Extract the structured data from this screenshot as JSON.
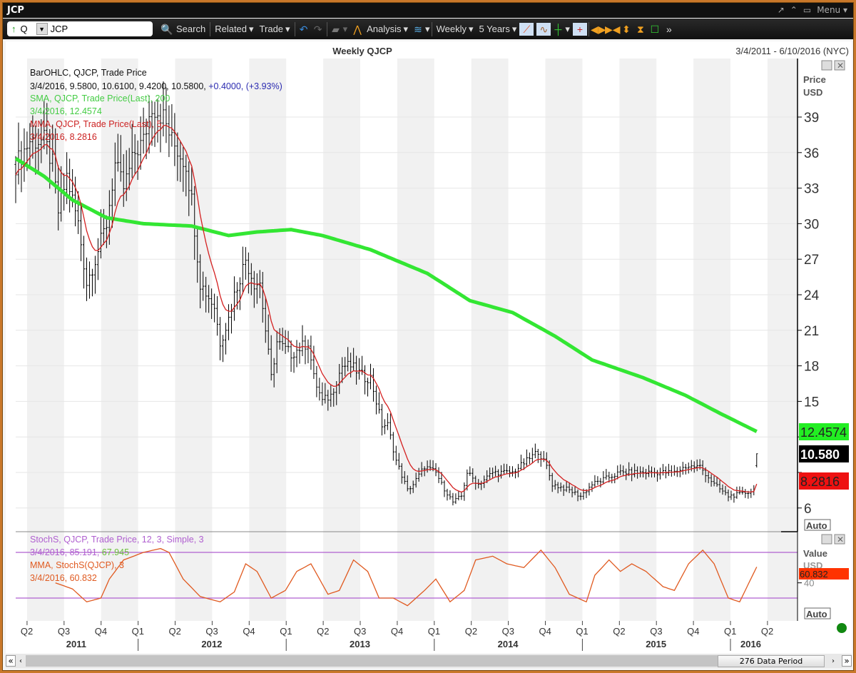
{
  "window": {
    "title": "JCP",
    "menu_label": "Menu"
  },
  "toolbar": {
    "direction": "Q",
    "symbol": "JCP",
    "search": "Search",
    "related": "Related",
    "trade": "Trade",
    "analysis": "Analysis",
    "interval": "Weekly",
    "range": "5 Years"
  },
  "chart_header": {
    "title": "Weekly QJCP",
    "date_range": "3/4/2011 - 6/10/2016 (NYC)"
  },
  "legend": {
    "bar_title": "BarOHLC, QJCP, Trade Price",
    "bar_values": "3/4/2016, 9.5800, 10.6100, 9.4200, 10.5800,",
    "bar_change": "+0.4000, (+3.93%)",
    "sma_title": "SMA, QJCP, Trade Price(Last),  200",
    "sma_values": "3/4/2016, 12.4574",
    "mma_title": "MMA, QJCP, Trade Price(Last),  5",
    "mma_values": "3/4/2016, 8.2816",
    "stoch_title": "StochS, QJCP, Trade Price,  12, 3, Simple, 3",
    "stoch_values": "3/4/2016, 85.191,",
    "stoch_d": "67.945",
    "smma_title": "MMA, StochS(QJCP),  3",
    "smma_values": "3/4/2016, 60.832"
  },
  "axis": {
    "price_label1": "Price",
    "price_label2": "USD",
    "value_label": "Value",
    "value_label2": "USD",
    "auto": "Auto",
    "sma_tag": "12.4574",
    "last_tag": "10.580",
    "mma_tag": "8.2816",
    "stoch_tag": "60.832"
  },
  "colors": {
    "sma": "#33e633",
    "mma": "#d42020",
    "stoch": "#c070d8",
    "stochma": "#e05a20",
    "bars": "#000000"
  },
  "scrollbar": {
    "label": "276 Data Period"
  },
  "chart_data": {
    "type": "line",
    "title": "Weekly QJCP",
    "x_unit": "weeks since 3/4/2011",
    "price_ylim": [
      4.5,
      41
    ],
    "price_ticks": [
      6,
      9,
      12,
      15,
      18,
      21,
      24,
      27,
      30,
      33,
      36,
      39
    ],
    "last_bar": {
      "date": "3/4/2016",
      "open": 9.58,
      "high": 10.61,
      "low": 9.42,
      "close": 10.58
    },
    "close_keypoints": [
      [
        0,
        35
      ],
      [
        5,
        37
      ],
      [
        10,
        37
      ],
      [
        13,
        35
      ],
      [
        15,
        31
      ],
      [
        18,
        34
      ],
      [
        22,
        30
      ],
      [
        25,
        25
      ],
      [
        28,
        27
      ],
      [
        32,
        30
      ],
      [
        35,
        35
      ],
      [
        38,
        33
      ],
      [
        42,
        36
      ],
      [
        45,
        37
      ],
      [
        48,
        40
      ],
      [
        52,
        39
      ],
      [
        55,
        37
      ],
      [
        60,
        35
      ],
      [
        62,
        32
      ],
      [
        65,
        25
      ],
      [
        70,
        23
      ],
      [
        72,
        20
      ],
      [
        75,
        22
      ],
      [
        77,
        24
      ],
      [
        81,
        27
      ],
      [
        84,
        25
      ],
      [
        86,
        25
      ],
      [
        90,
        17
      ],
      [
        92,
        20
      ],
      [
        97,
        19
      ],
      [
        103,
        20
      ],
      [
        105,
        17
      ],
      [
        108,
        15
      ],
      [
        111,
        15.5
      ],
      [
        115,
        18
      ],
      [
        118,
        18
      ],
      [
        123,
        17
      ],
      [
        125,
        17
      ],
      [
        129,
        13
      ],
      [
        131,
        13
      ],
      [
        134,
        10
      ],
      [
        138,
        7.5
      ],
      [
        140,
        8
      ],
      [
        144,
        9.5
      ],
      [
        148,
        9
      ],
      [
        150,
        8
      ],
      [
        154,
        6.5
      ],
      [
        157,
        7
      ],
      [
        159,
        9
      ],
      [
        163,
        8
      ],
      [
        168,
        9
      ],
      [
        175,
        9
      ],
      [
        180,
        10
      ],
      [
        184,
        10.8
      ],
      [
        187,
        9.5
      ],
      [
        189,
        8
      ],
      [
        195,
        7.5
      ],
      [
        199,
        7
      ],
      [
        203,
        8
      ],
      [
        208,
        8.5
      ],
      [
        213,
        9
      ],
      [
        221,
        9
      ],
      [
        228,
        9
      ],
      [
        232,
        9
      ],
      [
        236,
        9.5
      ],
      [
        241,
        9.5
      ],
      [
        246,
        8
      ],
      [
        251,
        7
      ],
      [
        256,
        7.2
      ],
      [
        260,
        7.5
      ],
      [
        261,
        10.58
      ]
    ],
    "sma200_keypoints": [
      [
        0,
        35.5
      ],
      [
        10,
        34
      ],
      [
        20,
        32
      ],
      [
        32,
        30.5
      ],
      [
        45,
        30
      ],
      [
        62,
        29.8
      ],
      [
        75,
        29
      ],
      [
        85,
        29.3
      ],
      [
        97,
        29.5
      ],
      [
        108,
        29
      ],
      [
        125,
        27.8
      ],
      [
        145,
        25.8
      ],
      [
        160,
        23.5
      ],
      [
        175,
        22.5
      ],
      [
        190,
        20.5
      ],
      [
        203,
        18.5
      ],
      [
        221,
        17
      ],
      [
        236,
        15.5
      ],
      [
        248,
        14
      ],
      [
        261,
        12.4574
      ]
    ],
    "stoch_ylim": [
      0,
      100
    ],
    "stoch_levels": [
      20,
      80
    ],
    "stoch_ticks": [
      40
    ],
    "stoch_mma_keypoints": [
      [
        14,
        40
      ],
      [
        20,
        32
      ],
      [
        25,
        15
      ],
      [
        30,
        20
      ],
      [
        33,
        45
      ],
      [
        38,
        70
      ],
      [
        45,
        80
      ],
      [
        51,
        85
      ],
      [
        54,
        80
      ],
      [
        59,
        45
      ],
      [
        65,
        22
      ],
      [
        72,
        15
      ],
      [
        77,
        28
      ],
      [
        81,
        65
      ],
      [
        85,
        55
      ],
      [
        90,
        20
      ],
      [
        95,
        30
      ],
      [
        99,
        55
      ],
      [
        104,
        65
      ],
      [
        110,
        25
      ],
      [
        114,
        30
      ],
      [
        119,
        70
      ],
      [
        124,
        55
      ],
      [
        128,
        20
      ],
      [
        133,
        20
      ],
      [
        138,
        10
      ],
      [
        144,
        30
      ],
      [
        148,
        45
      ],
      [
        153,
        15
      ],
      [
        158,
        30
      ],
      [
        162,
        70
      ],
      [
        168,
        75
      ],
      [
        173,
        65
      ],
      [
        179,
        60
      ],
      [
        185,
        83
      ],
      [
        190,
        60
      ],
      [
        195,
        25
      ],
      [
        201,
        15
      ],
      [
        204,
        50
      ],
      [
        209,
        70
      ],
      [
        213,
        55
      ],
      [
        217,
        65
      ],
      [
        222,
        55
      ],
      [
        228,
        35
      ],
      [
        232,
        30
      ],
      [
        237,
        65
      ],
      [
        242,
        83
      ],
      [
        246,
        65
      ],
      [
        251,
        20
      ],
      [
        255,
        15
      ],
      [
        261,
        60.832
      ]
    ],
    "quarters": [
      "Q2",
      "Q3",
      "Q4",
      "Q1",
      "Q2",
      "Q3",
      "Q4",
      "Q1",
      "Q2",
      "Q3",
      "Q4",
      "Q1",
      "Q2",
      "Q3",
      "Q4",
      "Q1",
      "Q2",
      "Q3",
      "Q4",
      "Q1",
      "Q2"
    ],
    "years": [
      "2011",
      "2012",
      "2013",
      "2014",
      "2015",
      "2016"
    ]
  }
}
